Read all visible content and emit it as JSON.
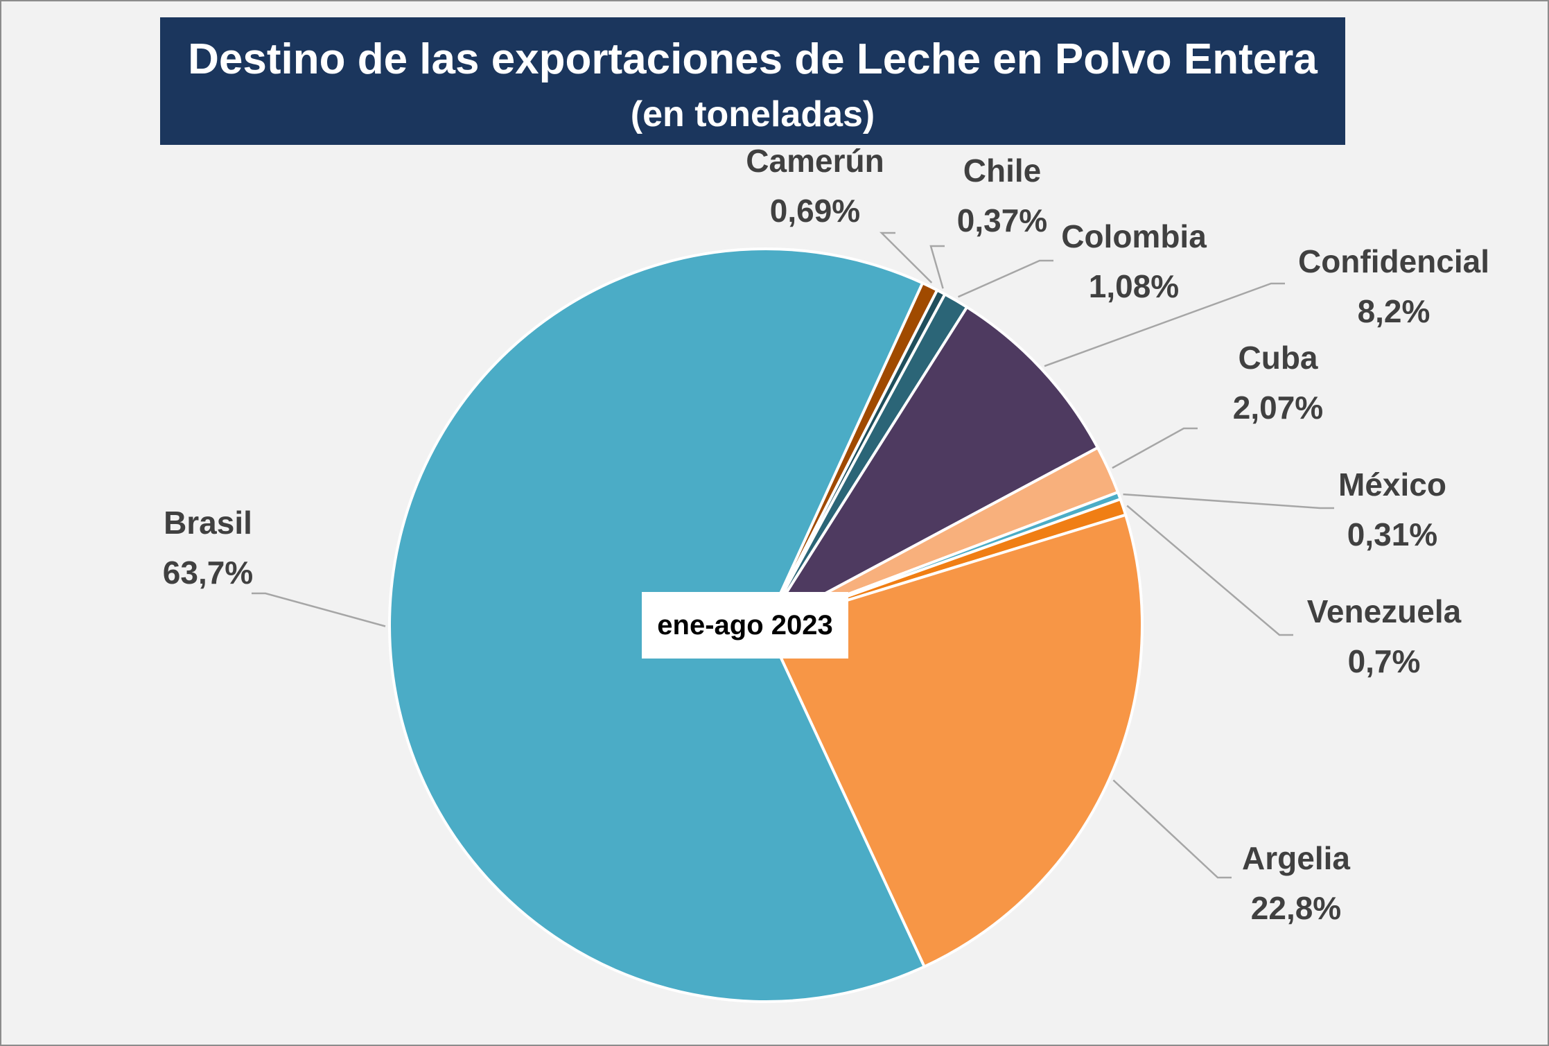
{
  "chart_data": {
    "type": "pie",
    "title": "Destino de las exportaciones de Leche en Polvo Entera",
    "subtitle": "(en toneladas)",
    "center_label": "ene-ago 2023",
    "slices": [
      {
        "name": "Camerún",
        "value": 0.69,
        "label": "0,69%",
        "color": "#a04a00"
      },
      {
        "name": "Chile",
        "value": 0.37,
        "label": "0,37%",
        "color": "#1f4e5c"
      },
      {
        "name": "Colombia",
        "value": 1.08,
        "label": "1,08%",
        "color": "#2b6577"
      },
      {
        "name": "Confidencial",
        "value": 8.2,
        "label": "8,2%",
        "color": "#4e3a60"
      },
      {
        "name": "Cuba",
        "value": 2.07,
        "label": "2,07%",
        "color": "#f8b07c"
      },
      {
        "name": "México",
        "value": 0.31,
        "label": "0,31%",
        "color": "#4bacc6"
      },
      {
        "name": "Venezuela",
        "value": 0.7,
        "label": "0,7%",
        "color": "#f07e14"
      },
      {
        "name": "Argelia",
        "value": 22.8,
        "label": "22,8%",
        "color": "#f79646"
      },
      {
        "name": "Brasil",
        "value": 63.7,
        "label": "63,7%",
        "color": "#4bacc6"
      }
    ]
  }
}
